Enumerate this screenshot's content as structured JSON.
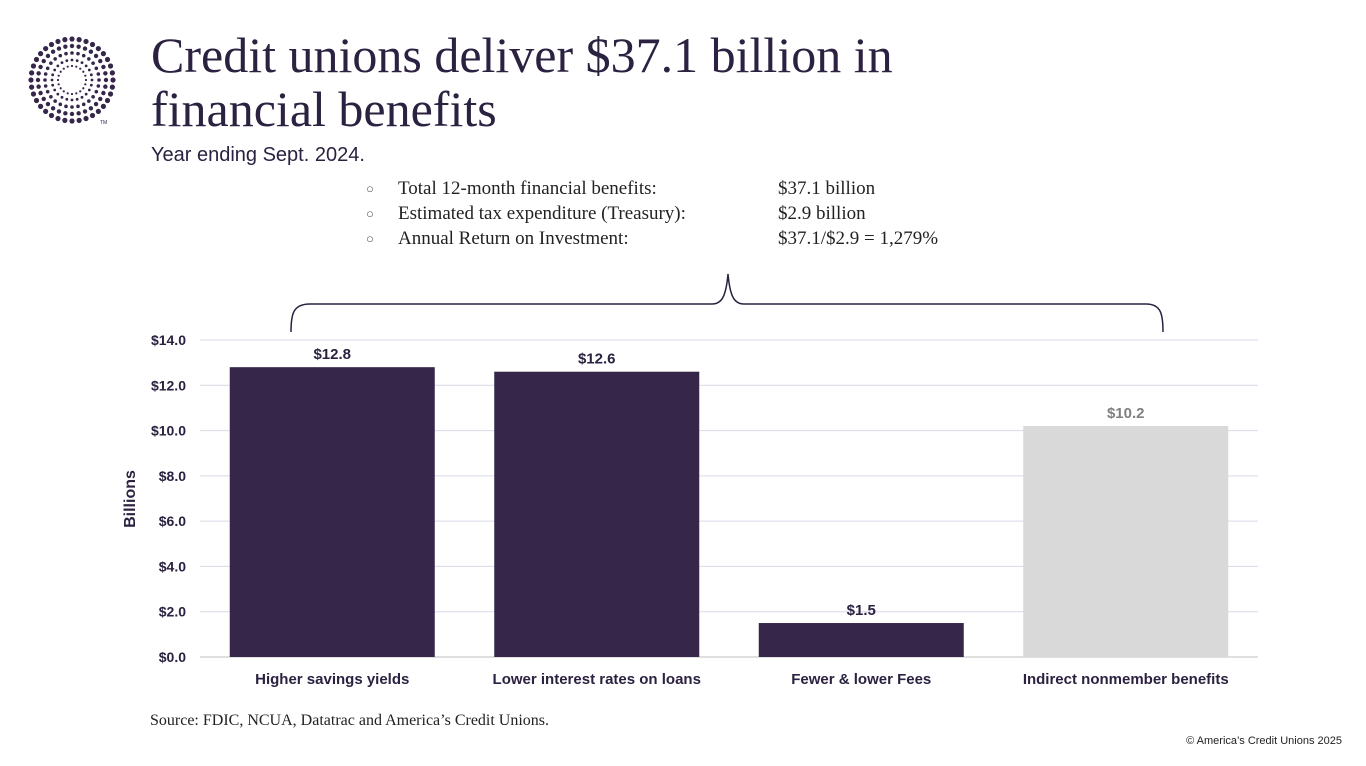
{
  "header": {
    "title": "Credit unions deliver $37.1 billion in financial benefits",
    "subtitle": "Year ending Sept. 2024.",
    "logo_mark": "TM"
  },
  "summary": [
    {
      "label": "Total 12-month financial benefits:",
      "value": "$37.1 billion"
    },
    {
      "label": "Estimated tax expenditure (Treasury):",
      "value": "$2.9 billion"
    },
    {
      "label": "Annual Return on Investment:",
      "value": "$37.1/$2.9 = 1,279%"
    }
  ],
  "chart_data": {
    "type": "bar",
    "categories": [
      "Higher savings yields",
      "Lower interest rates on loans",
      "Fewer & lower Fees",
      "Indirect nonmember benefits"
    ],
    "values": [
      12.8,
      12.6,
      1.5,
      10.2
    ],
    "data_labels": [
      "$12.8",
      "$12.6",
      "$1.5",
      "$10.2"
    ],
    "colors": [
      "#35264a",
      "#35264a",
      "#35264a",
      "#d9d9d9"
    ],
    "label_colors": [
      "#2b2140",
      "#2b2140",
      "#2b2140",
      "#808080"
    ],
    "ylabel": "Billions",
    "ylim": [
      0,
      14
    ],
    "yticks": [
      0,
      2,
      4,
      6,
      8,
      10,
      12,
      14
    ],
    "ytick_labels": [
      "$0.0",
      "$2.0",
      "$4.0",
      "$6.0",
      "$8.0",
      "$10.0",
      "$12.0",
      "$14.0"
    ],
    "grid": true,
    "legend": "none"
  },
  "footer": {
    "source": "Source: FDIC, NCUA, Datatrac and America’s Credit Unions.",
    "copyright": "© America’s Credit Unions 2025"
  }
}
